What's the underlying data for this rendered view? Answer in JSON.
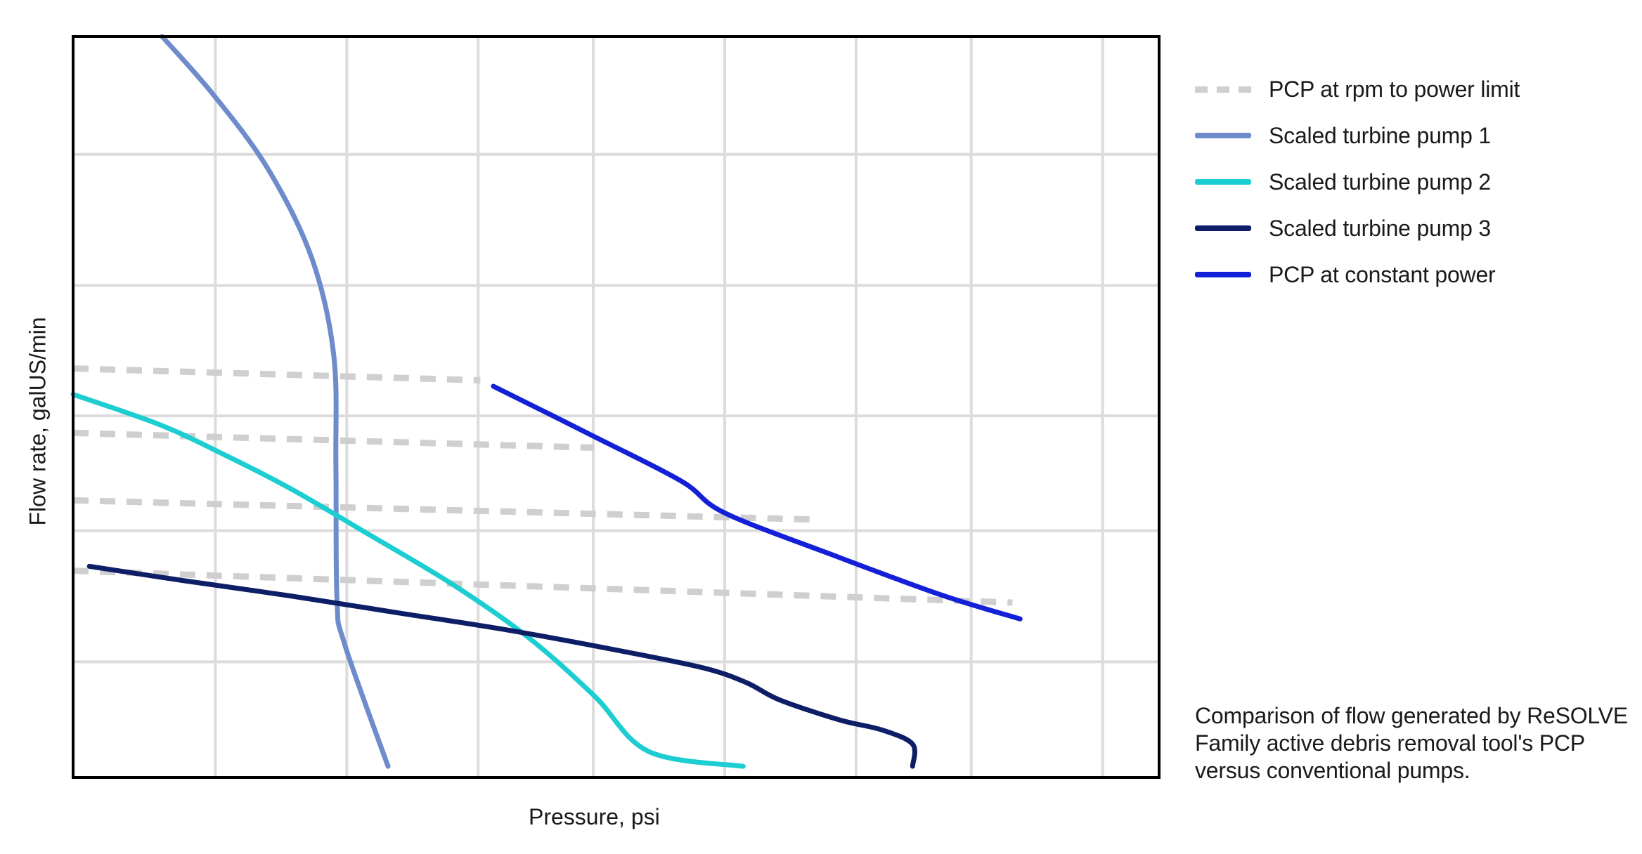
{
  "chart_data": {
    "type": "line",
    "xlabel": "Pressure, psi",
    "ylabel": "Flow rate, galUS/min",
    "xlim": [
      0,
      100
    ],
    "ylim": [
      0,
      100
    ],
    "grid": true,
    "ticks_labeled": false,
    "legend_position": "top-right, outside plot",
    "series": [
      {
        "name": "PCP at rpm to power limit",
        "color": "#cfcfcf",
        "style": "dashed",
        "segments": [
          [
            [
              0,
              55.2
            ],
            [
              37.5,
              53.6
            ]
          ],
          [
            [
              0,
              46.5
            ],
            [
              48,
              44.5
            ]
          ],
          [
            [
              0,
              37.4
            ],
            [
              68.5,
              34.8
            ]
          ],
          [
            [
              0,
              27.9
            ],
            [
              86.5,
              23.6
            ]
          ]
        ]
      },
      {
        "name": "Scaled turbine pump 1",
        "color": "#6e8ccc",
        "style": "solid",
        "points": [
          [
            8.2,
            100
          ],
          [
            13,
            92
          ],
          [
            18,
            82
          ],
          [
            22,
            70
          ],
          [
            24,
            57
          ],
          [
            24.2,
            42
          ],
          [
            24.3,
            24
          ],
          [
            25,
            18
          ],
          [
            29,
            1.5
          ]
        ]
      },
      {
        "name": "Scaled turbine pump 2",
        "color": "#1ccdd1",
        "style": "solid",
        "points": [
          [
            0,
            51.7
          ],
          [
            8,
            47.6
          ],
          [
            14,
            43.5
          ],
          [
            20,
            39
          ],
          [
            27,
            33
          ],
          [
            35,
            26
          ],
          [
            42,
            18.8
          ],
          [
            48,
            11
          ],
          [
            53,
            3.5
          ],
          [
            61.7,
            1.5
          ]
        ]
      },
      {
        "name": "Scaled turbine pump 3",
        "color": "#0e1e66",
        "style": "solid",
        "points": [
          [
            1.5,
            28.5
          ],
          [
            10,
            26.6
          ],
          [
            20,
            24.5
          ],
          [
            30,
            22.2
          ],
          [
            40,
            19.9
          ],
          [
            50,
            17.2
          ],
          [
            58,
            14.8
          ],
          [
            62,
            12.8
          ],
          [
            65,
            10.5
          ],
          [
            70.5,
            7.8
          ],
          [
            74.5,
            6.4
          ],
          [
            77.3,
            4.5
          ],
          [
            77.3,
            1.5
          ]
        ]
      },
      {
        "name": "PCP at constant power",
        "color": "#1320d8",
        "style": "solid",
        "points": [
          [
            38.7,
            52.8
          ],
          [
            48,
            46
          ],
          [
            56,
            40
          ],
          [
            60,
            35.7
          ],
          [
            70,
            30
          ],
          [
            80,
            24.6
          ],
          [
            87.2,
            21.4
          ]
        ]
      }
    ]
  },
  "caption": "Comparison of flow generated by ReSOLVE Family active debris removal tool's PCP versus conventional pumps."
}
